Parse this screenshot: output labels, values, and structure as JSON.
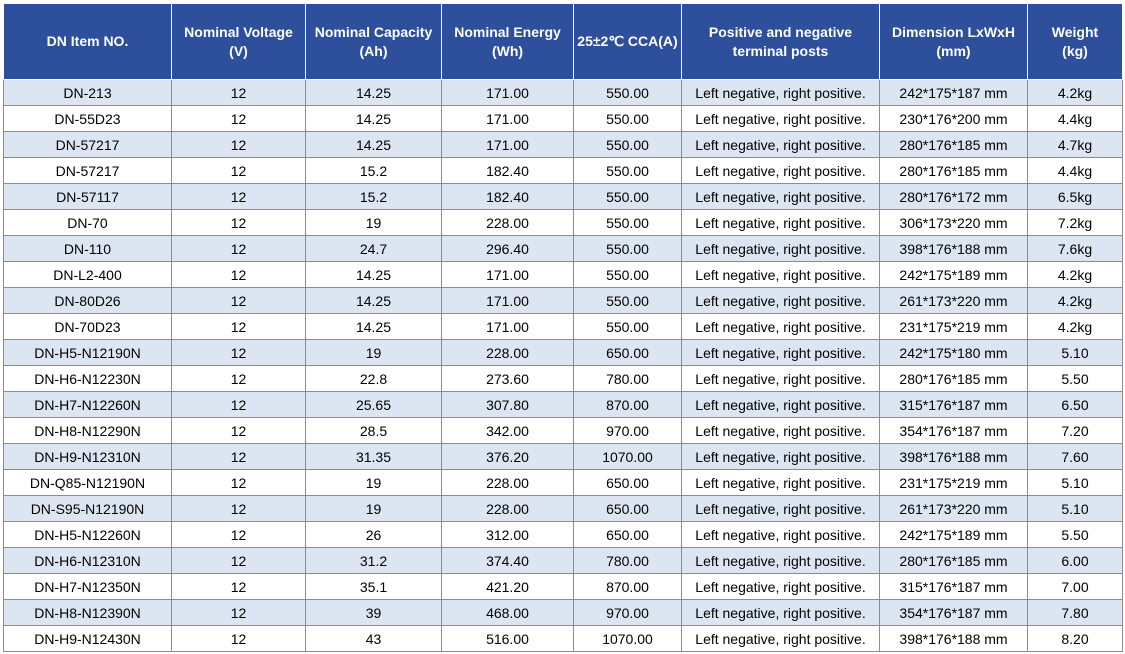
{
  "table": {
    "headers": [
      "DN Item NO.",
      "Nominal Voltage\n(V)",
      "Nominal Capacity\n(Ah)",
      "Nominal Energy\n(Wh)",
      "25±2℃ CCA(A)",
      "Positive and negative\nterminal posts",
      "Dimension LxWxH\n(mm)",
      "Weight\n(kg)"
    ],
    "rows": [
      [
        "DN-213",
        "12",
        "14.25",
        "171.00",
        "550.00",
        "Left negative, right positive.",
        "242*175*187 mm",
        "4.2kg"
      ],
      [
        "DN-55D23",
        "12",
        "14.25",
        "171.00",
        "550.00",
        "Left negative, right positive.",
        "230*176*200 mm",
        "4.4kg"
      ],
      [
        "DN-57217",
        "12",
        "14.25",
        "171.00",
        "550.00",
        "Left negative, right positive.",
        "280*176*185 mm",
        "4.7kg"
      ],
      [
        "DN-57217",
        "12",
        "15.2",
        "182.40",
        "550.00",
        "Left negative, right positive.",
        "280*176*185 mm",
        "4.4kg"
      ],
      [
        "DN-57117",
        "12",
        "15.2",
        "182.40",
        "550.00",
        "Left negative, right positive.",
        "280*176*172 mm",
        "6.5kg"
      ],
      [
        "DN-70",
        "12",
        "19",
        "228.00",
        "550.00",
        "Left negative, right positive.",
        "306*173*220 mm",
        "7.2kg"
      ],
      [
        "DN-110",
        "12",
        "24.7",
        "296.40",
        "550.00",
        "Left negative, right positive.",
        "398*176*188 mm",
        "7.6kg"
      ],
      [
        "DN-L2-400",
        "12",
        "14.25",
        "171.00",
        "550.00",
        "Left negative, right positive.",
        "242*175*189 mm",
        "4.2kg"
      ],
      [
        "DN-80D26",
        "12",
        "14.25",
        "171.00",
        "550.00",
        "Left negative, right positive.",
        "261*173*220 mm",
        "4.2kg"
      ],
      [
        "DN-70D23",
        "12",
        "14.25",
        "171.00",
        "550.00",
        "Left negative, right positive.",
        "231*175*219 mm",
        "4.2kg"
      ],
      [
        "DN-H5-N12190N",
        "12",
        "19",
        "228.00",
        "650.00",
        "Left negative, right positive.",
        "242*175*180 mm",
        "5.10"
      ],
      [
        "DN-H6-N12230N",
        "12",
        "22.8",
        "273.60",
        "780.00",
        "Left negative, right positive.",
        "280*176*185 mm",
        "5.50"
      ],
      [
        "DN-H7-N12260N",
        "12",
        "25.65",
        "307.80",
        "870.00",
        "Left negative, right positive.",
        "315*176*187 mm",
        "6.50"
      ],
      [
        "DN-H8-N12290N",
        "12",
        "28.5",
        "342.00",
        "970.00",
        "Left negative, right positive.",
        "354*176*187 mm",
        "7.20"
      ],
      [
        "DN-H9-N12310N",
        "12",
        "31.35",
        "376.20",
        "1070.00",
        "Left negative, right positive.",
        "398*176*188 mm",
        "7.60"
      ],
      [
        "DN-Q85-N12190N",
        "12",
        "19",
        "228.00",
        "650.00",
        "Left negative, right positive.",
        "231*175*219 mm",
        "5.10"
      ],
      [
        "DN-S95-N12190N",
        "12",
        "19",
        "228.00",
        "650.00",
        "Left negative, right positive.",
        "261*173*220 mm",
        "5.10"
      ],
      [
        "DN-H5-N12260N",
        "12",
        "26",
        "312.00",
        "650.00",
        "Left negative, right positive.",
        "242*175*189 mm",
        "5.50"
      ],
      [
        "DN-H6-N12310N",
        "12",
        "31.2",
        "374.40",
        "780.00",
        "Left negative, right positive.",
        "280*176*185 mm",
        "6.00"
      ],
      [
        "DN-H7-N12350N",
        "12",
        "35.1",
        "421.20",
        "870.00",
        "Left negative, right positive.",
        "315*176*187 mm",
        "7.00"
      ],
      [
        "DN-H8-N12390N",
        "12",
        "39",
        "468.00",
        "970.00",
        "Left negative, right positive.",
        "354*176*187 mm",
        "7.80"
      ],
      [
        "DN-H9-N12430N",
        "12",
        "43",
        "516.00",
        "1070.00",
        "Left negative, right positive.",
        "398*176*188 mm",
        "8.20"
      ]
    ]
  }
}
